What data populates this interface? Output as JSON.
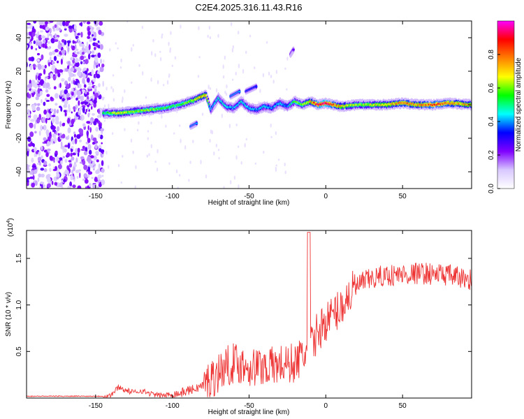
{
  "title": "C2E4.2025.316.11.43.R16",
  "chart_data": [
    {
      "type": "heatmap",
      "xlabel": "Height of straight line (km)",
      "ylabel": "Frequency (Hz)",
      "xlim": [
        -195,
        95
      ],
      "ylim": [
        -50,
        50
      ],
      "x_ticks": [
        "-150",
        "-100",
        "-50",
        "0",
        "50"
      ],
      "x_tick_values": [
        -150,
        -100,
        -50,
        0,
        50
      ],
      "y_ticks": [
        "40",
        "20",
        "0",
        "-20",
        "-40"
      ],
      "y_tick_values": [
        40,
        20,
        0,
        -20,
        -40
      ],
      "colorbar": {
        "label": "Normalized spectral amplitude",
        "ticks": [
          "0.0",
          "0.2",
          "0.4",
          "0.6",
          "0.8"
        ],
        "tick_values": [
          0,
          0.2,
          0.4,
          0.6,
          0.8
        ],
        "range": [
          0,
          1
        ],
        "colormap": [
          "#ffffff",
          "#d8c8ff",
          "#8000ff",
          "#0000ff",
          "#00ffff",
          "#00ff00",
          "#ffff00",
          "#ff8000",
          "#ff0000",
          "#ff00ff"
        ]
      },
      "ridge": {
        "x": [
          -145,
          -135,
          -125,
          -115,
          -105,
          -95,
          -85,
          -78,
          -75,
          -70,
          -65,
          -60,
          -55,
          -50,
          -45,
          -40,
          -35,
          -30,
          -25,
          -20,
          -15,
          -10,
          -5,
          0,
          10,
          20,
          30,
          40,
          50,
          60,
          70,
          80,
          95
        ],
        "y": [
          -5,
          -5,
          -4,
          -3,
          -2,
          0,
          3,
          6,
          -3,
          4,
          -1,
          -2,
          2,
          -2,
          -3,
          -1,
          -2,
          1,
          -1,
          2,
          0,
          2,
          0,
          1,
          -1,
          0,
          0,
          0,
          1,
          0,
          0,
          1,
          0
        ],
        "amplitude": [
          0.5,
          0.65,
          0.6,
          0.6,
          0.55,
          0.55,
          0.65,
          0.75,
          0.4,
          0.45,
          0.45,
          0.4,
          0.45,
          0.45,
          0.4,
          0.45,
          0.4,
          0.45,
          0.4,
          0.55,
          0.6,
          0.7,
          0.9,
          0.95,
          0.7,
          0.6,
          0.65,
          0.7,
          0.8,
          0.75,
          0.85,
          0.8,
          0.7
        ]
      },
      "branches": [
        {
          "x": [
            -88,
            -84
          ],
          "y": [
            -13,
            -11
          ],
          "amplitude": 0.4
        },
        {
          "x": [
            -62,
            -56
          ],
          "y": [
            5,
            8
          ],
          "amplitude": 0.4
        },
        {
          "x": [
            -52,
            -45
          ],
          "y": [
            8,
            11
          ],
          "amplitude": 0.35
        },
        {
          "x": [
            -23,
            -21
          ],
          "y": [
            30,
            33
          ],
          "amplitude": 0.25
        }
      ],
      "noise_region_x": [
        -195,
        -145
      ]
    },
    {
      "type": "line",
      "xlabel": "Height of straight line (km)",
      "ylabel": "SNR (10 * v/v)",
      "scale_note": "(x10",
      "scale_exp": "4",
      "scale_close": ")",
      "xlim": [
        -195,
        95
      ],
      "ylim": [
        0,
        1.8
      ],
      "x_ticks": [
        "-150",
        "-100",
        "-50",
        "0",
        "50"
      ],
      "x_tick_values": [
        -150,
        -100,
        -50,
        0,
        50
      ],
      "y_ticks": [
        "1.5",
        "1.0",
        "0.5"
      ],
      "y_tick_values": [
        1.5,
        1.0,
        0.5
      ],
      "line_color": "#ee3333",
      "series": [
        {
          "x": [
            -195,
            -150,
            -145,
            -140,
            -135,
            -130,
            -125,
            -120,
            -115,
            -110,
            -105,
            -100,
            -95,
            -90,
            -85,
            -80,
            -75,
            -70,
            -65,
            -60,
            -55,
            -50,
            -45,
            -40,
            -35,
            -30,
            -25,
            -20,
            -15,
            -10,
            -5,
            0,
            5,
            10,
            15,
            20,
            25,
            30,
            35,
            40,
            45,
            50,
            55,
            60,
            65,
            70,
            75,
            80,
            85,
            90,
            95
          ],
          "values": [
            0.02,
            0.02,
            0.02,
            0.03,
            0.12,
            0.08,
            0.06,
            0.08,
            0.05,
            0.03,
            0.03,
            0.04,
            0.05,
            0.08,
            0.1,
            0.14,
            0.2,
            0.28,
            0.34,
            0.38,
            0.36,
            0.34,
            0.33,
            0.35,
            0.34,
            0.36,
            0.36,
            0.38,
            0.45,
            0.55,
            0.72,
            0.82,
            0.9,
            0.98,
            1.1,
            1.2,
            1.25,
            1.28,
            1.3,
            1.32,
            1.32,
            1.33,
            1.33,
            1.34,
            1.34,
            1.33,
            1.33,
            1.32,
            1.3,
            1.28,
            1.28
          ]
        }
      ]
    }
  ]
}
